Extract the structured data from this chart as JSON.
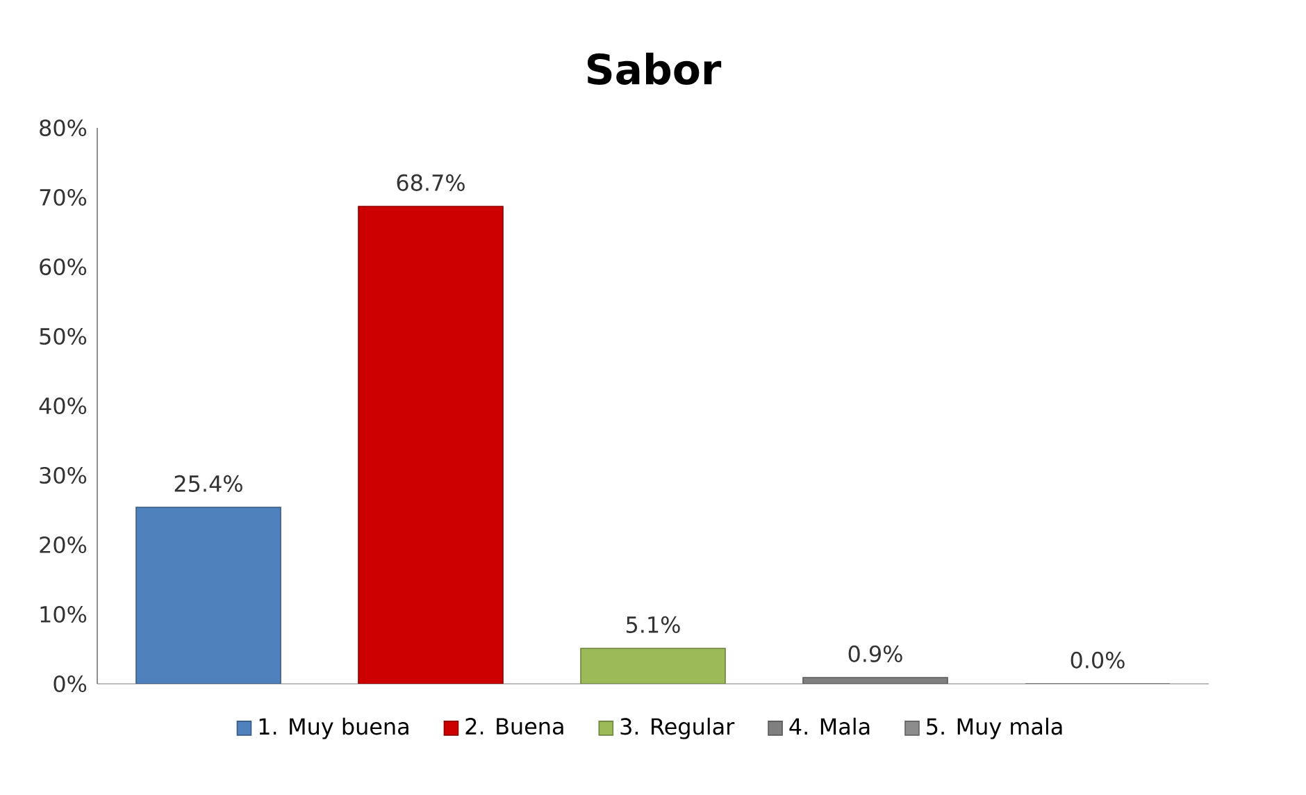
{
  "chart_data": {
    "type": "bar",
    "title": "Sabor",
    "categories": [
      null,
      null,
      null,
      null,
      null
    ],
    "series": [
      {
        "name": "1. Muy buena",
        "color": "#4f81bd",
        "values": [
          25.4,
          null,
          null,
          null,
          null
        ],
        "value_labels": [
          "25.4%",
          null,
          null,
          null,
          null
        ]
      },
      {
        "name": "2. Buena",
        "color": "#cc0000",
        "values": [
          null,
          68.7,
          null,
          null,
          null
        ],
        "value_labels": [
          null,
          "68.7%",
          null,
          null,
          null
        ]
      },
      {
        "name": "3. Regular",
        "color": "#9bbb59",
        "values": [
          null,
          null,
          5.1,
          null,
          null
        ],
        "value_labels": [
          null,
          null,
          "5.1%",
          null,
          null
        ]
      },
      {
        "name": "4. Mala",
        "color": "#7f7f7f",
        "values": [
          null,
          null,
          null,
          0.9,
          null
        ],
        "value_labels": [
          null,
          null,
          null,
          "0.9%",
          null
        ]
      },
      {
        "name": "5. Muy mala",
        "color": "#8c8c8c",
        "values": [
          null,
          null,
          null,
          null,
          0.0
        ],
        "value_labels": [
          null,
          null,
          null,
          null,
          "0.0%"
        ]
      }
    ],
    "ylim": [
      0,
      80
    ],
    "yticks": [
      {
        "value": 0,
        "label": "0%"
      },
      {
        "value": 10,
        "label": "10%"
      },
      {
        "value": 20,
        "label": "20%"
      },
      {
        "value": 30,
        "label": "30%"
      },
      {
        "value": 40,
        "label": "40%"
      },
      {
        "value": 50,
        "label": "50%"
      },
      {
        "value": 60,
        "label": "60%"
      },
      {
        "value": 70,
        "label": "70%"
      },
      {
        "value": 80,
        "label": "80%"
      }
    ],
    "legend": "bottom"
  }
}
